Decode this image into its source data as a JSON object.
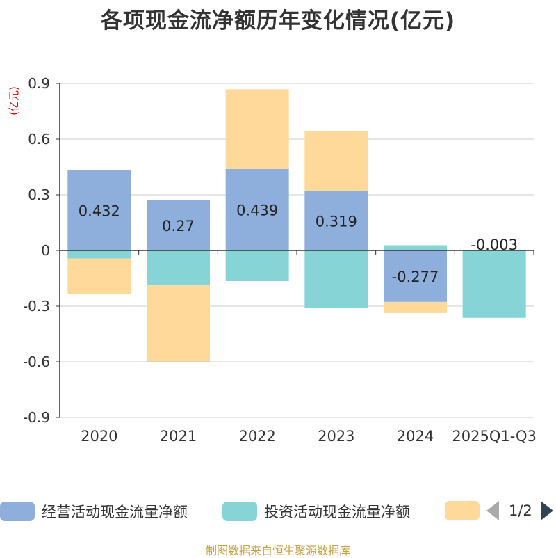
{
  "chart_data": {
    "type": "bar",
    "stacked": true,
    "title": "各项现金流净额历年变化情况(亿元)",
    "ylabel": "(亿元)",
    "ylim": [
      -0.9,
      0.9
    ],
    "yticks": [
      "0.9",
      "0.6",
      "0.3",
      "0",
      "-0.3",
      "-0.6",
      "-0.9"
    ],
    "ytick_values": [
      0.9,
      0.6,
      0.3,
      0,
      -0.3,
      -0.6,
      -0.9
    ],
    "grid": true,
    "categories": [
      "2020",
      "2021",
      "2022",
      "2023",
      "2024",
      "2025Q1-Q3"
    ],
    "series": [
      {
        "name": "经营活动现金流量净额",
        "color": "#8eaedb",
        "values": [
          0.432,
          0.27,
          0.439,
          0.319,
          -0.277,
          -0.003
        ],
        "labels": [
          "0.432",
          "0.27",
          "0.439",
          "0.319",
          "-0.277",
          "-0.003"
        ]
      },
      {
        "name": "投资活动现金流量净额",
        "color": "#86d4d6",
        "values": [
          -0.043,
          -0.188,
          -0.165,
          -0.31,
          0.028,
          -0.36
        ]
      },
      {
        "name": "",
        "color": "#fed999",
        "values": [
          -0.19,
          -0.41,
          0.43,
          0.325,
          -0.06,
          0
        ]
      }
    ],
    "legend_position": "bottom",
    "legend_page": "1/2"
  },
  "source": "制图数据来自恒生聚源数据库"
}
